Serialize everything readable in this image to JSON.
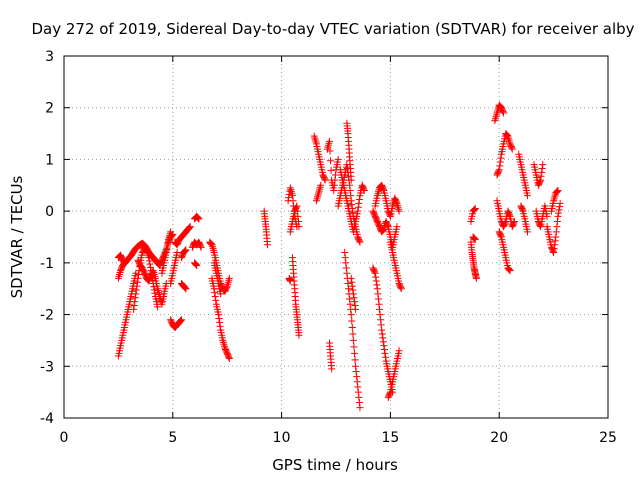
{
  "chart_data": {
    "type": "scatter",
    "title": "Day 272 of 2019, Sidereal Day-to-day VTEC variation (SDTVAR) for receiver alby",
    "xlabel": "GPS time / hours",
    "ylabel": "SDTVAR / TECUs",
    "xlim": [
      0,
      25
    ],
    "ylim": [
      -4,
      3
    ],
    "xticks": [
      0,
      5,
      10,
      15,
      20,
      25
    ],
    "yticks": [
      -4,
      -3,
      -2,
      -1,
      0,
      1,
      2,
      3
    ],
    "xtick_labels": [
      "0",
      "5",
      "10",
      "15",
      "20",
      "25"
    ],
    "ytick_labels": [
      "-4",
      "-3",
      "-2",
      "-1",
      "0",
      "1",
      "2",
      "3"
    ],
    "grid": true,
    "marker": "+",
    "marker_color": "#ff0000",
    "series": [
      {
        "name": "alby",
        "segments": [
          {
            "x": [
              2.5,
              2.6,
              2.7,
              2.8,
              2.9,
              3.0,
              3.1,
              3.2,
              3.3,
              3.4,
              3.5,
              3.6,
              3.7,
              3.8,
              3.9,
              4.0,
              4.1,
              4.2,
              4.3,
              4.4,
              4.5,
              4.6,
              4.7,
              4.8,
              4.9,
              5.0
            ],
            "y": [
              -1.3,
              -1.15,
              -1.05,
              -1.0,
              -0.95,
              -0.9,
              -0.85,
              -0.78,
              -0.72,
              -0.68,
              -0.65,
              -0.62,
              -0.66,
              -0.72,
              -0.8,
              -0.85,
              -0.9,
              -0.95,
              -1.0,
              -1.05,
              -0.95,
              -0.85,
              -0.75,
              -0.6,
              -0.5,
              -0.45
            ]
          },
          {
            "x": [
              2.5,
              2.6,
              2.7,
              2.8,
              2.9,
              3.0,
              3.1,
              3.2,
              3.3
            ],
            "y": [
              -2.8,
              -2.6,
              -2.4,
              -2.2,
              -2.0,
              -1.8,
              -1.6,
              -1.4,
              -1.2
            ]
          },
          {
            "x": [
              2.5,
              2.6,
              2.7,
              2.8
            ],
            "y": [
              -0.9,
              -0.85,
              -0.95,
              -1.0
            ]
          },
          {
            "x": [
              3.2,
              3.3,
              3.4,
              3.5,
              3.6,
              3.7,
              3.8,
              3.9,
              4.0,
              4.1,
              4.2,
              4.3
            ],
            "y": [
              -1.9,
              -1.6,
              -1.3,
              -1.0,
              -0.8,
              -0.7,
              -0.75,
              -0.9,
              -1.15,
              -1.4,
              -1.65,
              -1.85
            ]
          },
          {
            "x": [
              3.4,
              3.5,
              3.6,
              3.7,
              3.8,
              3.9,
              4.0,
              4.1,
              4.2,
              4.3,
              4.4,
              4.5,
              4.6,
              4.7
            ],
            "y": [
              -0.95,
              -1.05,
              -1.1,
              -1.2,
              -1.3,
              -1.35,
              -1.25,
              -1.15,
              -1.3,
              -1.5,
              -1.65,
              -1.8,
              -1.6,
              -1.4
            ]
          },
          {
            "x": [
              4.5,
              4.6,
              4.7,
              4.8,
              4.9
            ],
            "y": [
              -1.2,
              -1.0,
              -0.8,
              -0.55,
              -0.4
            ]
          },
          {
            "x": [
              4.9,
              5.0,
              5.1,
              5.2,
              5.3,
              5.4
            ],
            "y": [
              -2.1,
              -2.2,
              -2.25,
              -2.2,
              -2.15,
              -2.1
            ]
          },
          {
            "x": [
              4.9,
              5.0,
              5.1,
              5.2
            ],
            "y": [
              -1.4,
              -1.2,
              -1.0,
              -0.8
            ]
          },
          {
            "x": [
              5.1,
              5.2,
              5.3,
              5.4,
              5.5,
              5.6,
              5.7,
              5.8
            ],
            "y": [
              -0.6,
              -0.65,
              -0.55,
              -0.5,
              -0.45,
              -0.4,
              -0.35,
              -0.3
            ]
          },
          {
            "x": [
              5.4,
              5.5,
              5.6
            ],
            "y": [
              -0.9,
              -0.8,
              -0.75
            ]
          },
          {
            "x": [
              5.4,
              5.5,
              5.6
            ],
            "y": [
              -1.4,
              -1.45,
              -1.5
            ]
          },
          {
            "x": [
              6.0,
              6.1,
              6.2
            ],
            "y": [
              -0.15,
              -0.1,
              -0.15
            ]
          },
          {
            "x": [
              5.9,
              6.0,
              6.1,
              6.2,
              6.3
            ],
            "y": [
              -0.7,
              -0.6,
              -0.65,
              -0.6,
              -0.7
            ]
          },
          {
            "x": [
              6.0,
              6.1
            ],
            "y": [
              -1.0,
              -1.05
            ]
          },
          {
            "x": [
              6.7,
              6.8,
              6.9,
              7.0,
              7.1,
              7.2,
              7.3,
              7.4,
              7.5,
              7.6
            ],
            "y": [
              -0.6,
              -0.65,
              -0.8,
              -1.0,
              -1.2,
              -1.4,
              -1.5,
              -1.55,
              -1.45,
              -1.3
            ]
          },
          {
            "x": [
              6.8,
              6.9,
              7.0,
              7.1,
              7.2,
              7.3,
              7.4,
              7.5,
              7.6
            ],
            "y": [
              -1.3,
              -1.5,
              -1.8,
              -2.0,
              -2.3,
              -2.5,
              -2.65,
              -2.75,
              -2.85
            ]
          },
          {
            "x": [
              6.9,
              7.0,
              7.1,
              7.2
            ],
            "y": [
              -1.0,
              -1.2,
              -1.4,
              -1.6
            ]
          },
          {
            "x": [
              9.2,
              9.25,
              9.3,
              9.35
            ],
            "y": [
              0.0,
              -0.2,
              -0.4,
              -0.65
            ]
          },
          {
            "x": [
              10.3,
              10.4,
              10.5,
              10.6,
              10.7
            ],
            "y": [
              0.2,
              0.45,
              0.3,
              -0.1,
              -0.3
            ]
          },
          {
            "x": [
              10.4,
              10.5,
              10.6,
              10.7,
              10.8
            ],
            "y": [
              -0.4,
              -0.2,
              0.0,
              0.1,
              -0.3
            ]
          },
          {
            "x": [
              10.5,
              10.55,
              10.6,
              10.65,
              10.7,
              10.75,
              10.8
            ],
            "y": [
              -0.9,
              -1.2,
              -1.5,
              -1.8,
              -2.0,
              -2.2,
              -2.4
            ]
          },
          {
            "x": [
              10.35,
              10.4
            ],
            "y": [
              -1.3,
              -1.35
            ]
          },
          {
            "x": [
              11.5,
              11.6,
              11.7,
              11.8,
              11.9,
              12.0
            ],
            "y": [
              1.45,
              1.3,
              1.1,
              0.9,
              0.7,
              0.6
            ]
          },
          {
            "x": [
              12.1,
              12.2,
              12.3,
              12.4,
              12.5,
              12.6
            ],
            "y": [
              1.2,
              1.35,
              0.6,
              0.4,
              0.8,
              1.0
            ]
          },
          {
            "x": [
              11.6,
              11.7,
              11.8
            ],
            "y": [
              0.2,
              0.35,
              0.5
            ]
          },
          {
            "x": [
              12.7,
              12.8,
              12.9,
              13.0,
              13.1,
              13.2,
              13.3,
              13.4,
              13.5,
              13.6,
              13.7,
              13.8
            ],
            "y": [
              0.8,
              0.6,
              0.4,
              0.2,
              0.0,
              -0.2,
              -0.4,
              -0.2,
              0.0,
              0.3,
              0.5,
              0.4
            ]
          },
          {
            "x": [
              12.6,
              12.7,
              12.8,
              12.9,
              13.0,
              13.1,
              13.2,
              13.3,
              13.4,
              13.5,
              13.6
            ],
            "y": [
              0.1,
              0.3,
              0.5,
              0.7,
              0.9,
              0.6,
              0.2,
              -0.1,
              -0.3,
              -0.5,
              -0.6
            ]
          },
          {
            "x": [
              13.0,
              13.05,
              13.1,
              13.15,
              13.2
            ],
            "y": [
              1.7,
              1.5,
              1.2,
              0.9,
              0.6
            ]
          },
          {
            "x": [
              12.2,
              12.25,
              12.3
            ],
            "y": [
              -2.55,
              -2.8,
              -3.05
            ]
          },
          {
            "x": [
              12.9,
              13.0,
              13.1,
              13.2,
              13.3,
              13.4,
              13.5,
              13.6
            ],
            "y": [
              -0.8,
              -1.2,
              -1.6,
              -2.0,
              -2.5,
              -3.0,
              -3.4,
              -3.8
            ]
          },
          {
            "x": [
              13.2,
              13.3,
              13.4
            ],
            "y": [
              -1.3,
              -1.6,
              -1.9
            ]
          },
          {
            "x": [
              14.2,
              14.3,
              14.4,
              14.5,
              14.6,
              14.7,
              14.8,
              14.9,
              15.0,
              15.1
            ],
            "y": [
              -1.1,
              -1.2,
              -1.5,
              -1.9,
              -2.3,
              -2.6,
              -2.9,
              -3.1,
              -3.3,
              -3.5
            ]
          },
          {
            "x": [
              14.9,
              15.0,
              15.1,
              15.2,
              15.3,
              15.4
            ],
            "y": [
              -3.6,
              -3.5,
              -3.3,
              -3.1,
              -2.9,
              -2.7
            ]
          },
          {
            "x": [
              14.3,
              14.4,
              14.5,
              14.6,
              14.7,
              14.8,
              14.9,
              15.0,
              15.1,
              15.2,
              15.3,
              15.4
            ],
            "y": [
              0.1,
              0.3,
              0.45,
              0.5,
              0.4,
              0.2,
              0.0,
              -0.1,
              0.1,
              0.25,
              0.15,
              0.0
            ]
          },
          {
            "x": [
              14.4,
              14.5,
              14.6,
              14.7,
              14.8,
              14.9,
              15.0,
              15.1,
              15.2,
              15.3
            ],
            "y": [
              -0.2,
              -0.3,
              -0.4,
              -0.35,
              -0.2,
              -0.3,
              -0.5,
              -0.7,
              -0.5,
              -0.3
            ]
          },
          {
            "x": [
              15.0,
              15.1,
              15.2,
              15.3,
              15.4,
              15.5
            ],
            "y": [
              -0.6,
              -0.8,
              -1.0,
              -1.2,
              -1.4,
              -1.5
            ]
          },
          {
            "x": [
              14.2,
              14.3,
              14.4
            ],
            "y": [
              0.0,
              -0.1,
              -0.2
            ]
          },
          {
            "x": [
              18.7,
              18.75,
              18.8,
              18.85,
              18.9,
              18.95
            ],
            "y": [
              -0.6,
              -0.8,
              -0.95,
              -1.1,
              -1.2,
              -1.3
            ]
          },
          {
            "x": [
              18.7,
              18.8,
              18.9
            ],
            "y": [
              -0.2,
              0.0,
              0.05
            ]
          },
          {
            "x": [
              18.8,
              18.9
            ],
            "y": [
              -0.5,
              -0.55
            ]
          },
          {
            "x": [
              19.8,
              19.9,
              20.0,
              20.1,
              20.2
            ],
            "y": [
              1.75,
              1.9,
              2.05,
              2.0,
              1.9
            ]
          },
          {
            "x": [
              19.9,
              20.0,
              20.1,
              20.2,
              20.3,
              20.4,
              20.5,
              20.6
            ],
            "y": [
              0.7,
              0.8,
              1.1,
              1.3,
              1.5,
              1.45,
              1.3,
              1.2
            ]
          },
          {
            "x": [
              19.9,
              20.0,
              20.1,
              20.2,
              20.3,
              20.4,
              20.5,
              20.6,
              20.7
            ],
            "y": [
              0.2,
              0.0,
              -0.2,
              -0.3,
              -0.2,
              0.0,
              -0.1,
              -0.3,
              -0.2
            ]
          },
          {
            "x": [
              20.0,
              20.1,
              20.2,
              20.3,
              20.4,
              20.5
            ],
            "y": [
              -0.4,
              -0.5,
              -0.7,
              -0.9,
              -1.1,
              -1.15
            ]
          },
          {
            "x": [
              20.9,
              21.0,
              21.1,
              21.2,
              21.3
            ],
            "y": [
              1.1,
              0.9,
              0.7,
              0.5,
              0.3
            ]
          },
          {
            "x": [
              21.0,
              21.1,
              21.2,
              21.3
            ],
            "y": [
              0.1,
              0.0,
              -0.2,
              -0.4
            ]
          },
          {
            "x": [
              21.6,
              21.7,
              21.8,
              21.9,
              22.0
            ],
            "y": [
              0.9,
              0.7,
              0.5,
              0.6,
              0.9
            ]
          },
          {
            "x": [
              21.7,
              21.8,
              21.9,
              22.0,
              22.1,
              22.2
            ],
            "y": [
              0.0,
              -0.2,
              -0.3,
              -0.1,
              0.1,
              -0.1
            ]
          },
          {
            "x": [
              22.2,
              22.3,
              22.4,
              22.5,
              22.6,
              22.7,
              22.8
            ],
            "y": [
              -0.3,
              -0.5,
              -0.7,
              -0.8,
              -0.5,
              -0.1,
              0.15
            ]
          },
          {
            "x": [
              22.4,
              22.5,
              22.6,
              22.7
            ],
            "y": [
              0.0,
              0.2,
              0.35,
              0.4
            ]
          }
        ]
      }
    ]
  }
}
